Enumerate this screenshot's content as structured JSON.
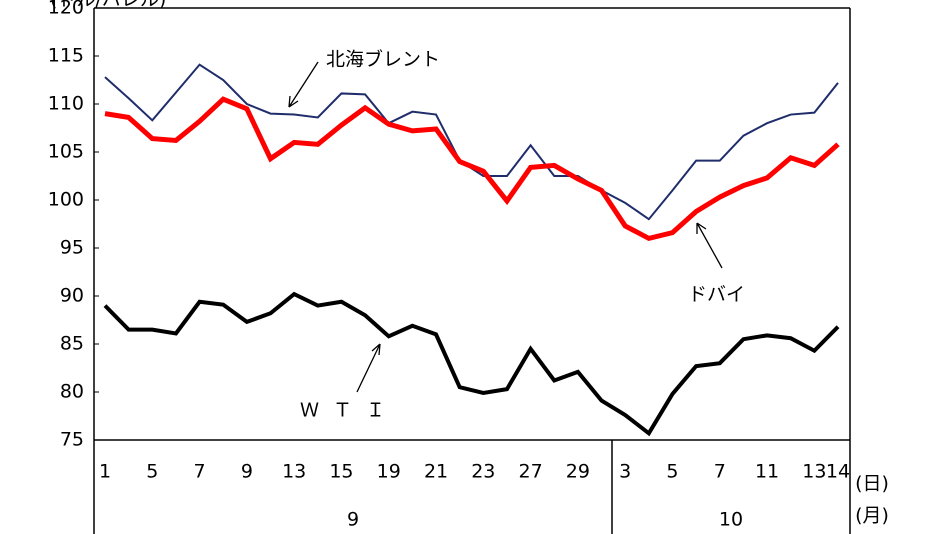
{
  "chart_data": {
    "type": "line",
    "y_axis_label": "(ドル/バレル)",
    "x_unit_day": "(日)",
    "x_unit_month": "(月)",
    "months": [
      "9",
      "10"
    ],
    "categories": [
      "1",
      null,
      "5",
      null,
      "7",
      null,
      "9",
      null,
      "13",
      null,
      "15",
      null,
      "19",
      null,
      "21",
      null,
      "23",
      null,
      "27",
      null,
      "29",
      null,
      "3",
      null,
      "5",
      null,
      "7",
      null,
      "11",
      null,
      "13",
      "14"
    ],
    "series": [
      {
        "name": "北海ブレント",
        "color": "#1f2d6b",
        "values": [
          112.8,
          110.6,
          108.3,
          111.2,
          114.1,
          112.5,
          110.0,
          109.0,
          108.9,
          108.6,
          111.1,
          111.0,
          108.0,
          109.2,
          108.9,
          104.1,
          102.5,
          102.5,
          105.7,
          102.5,
          102.5,
          101.0,
          99.7,
          98.0,
          101.0,
          104.1,
          104.1,
          106.7,
          108.0,
          108.9,
          109.1,
          112.2
        ]
      },
      {
        "name": "ドバイ",
        "color": "#ff0000",
        "values": [
          109.0,
          108.6,
          106.4,
          106.2,
          108.2,
          110.5,
          109.5,
          104.3,
          106.0,
          105.8,
          107.8,
          109.6,
          107.9,
          107.2,
          107.4,
          104.0,
          103.0,
          99.9,
          103.4,
          103.6,
          102.2,
          101.0,
          97.3,
          96.0,
          96.6,
          98.8,
          100.3,
          101.5,
          102.3,
          104.4,
          103.6,
          105.8
        ]
      },
      {
        "name": "ＷＴＩ",
        "color": "#000000",
        "values": [
          89.0,
          86.5,
          86.5,
          86.1,
          89.4,
          89.1,
          87.3,
          88.2,
          90.2,
          89.0,
          89.4,
          88.0,
          85.8,
          86.9,
          86.0,
          80.5,
          79.9,
          80.3,
          84.5,
          81.2,
          82.1,
          79.1,
          77.6,
          75.7,
          79.8,
          82.7,
          83.0,
          85.5,
          85.9,
          85.6,
          84.3,
          86.8
        ]
      }
    ],
    "ylim": [
      75,
      120
    ],
    "yticks": [
      75,
      80,
      85,
      90,
      95,
      100,
      105,
      110,
      115,
      120
    ]
  }
}
